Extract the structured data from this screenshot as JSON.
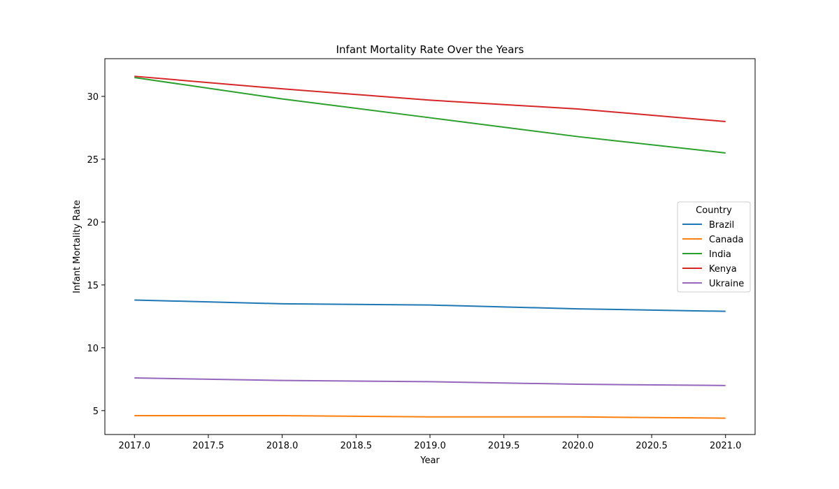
{
  "chart_data": {
    "type": "line",
    "title": "Infant Mortality Rate Over the Years",
    "xlabel": "Year",
    "ylabel": "Infant Mortality Rate",
    "x": [
      2017,
      2018,
      2019,
      2020,
      2021
    ],
    "xlim": [
      2016.8,
      2021.2
    ],
    "ylim": [
      3.1,
      33.0
    ],
    "xticks": [
      2017.0,
      2017.5,
      2018.0,
      2018.5,
      2019.0,
      2019.5,
      2020.0,
      2020.5,
      2021.0
    ],
    "xtick_labels": [
      "2017.0",
      "2017.5",
      "2018.0",
      "2018.5",
      "2019.0",
      "2019.5",
      "2020.0",
      "2020.5",
      "2021.0"
    ],
    "yticks": [
      5,
      10,
      15,
      20,
      25,
      30
    ],
    "ytick_labels": [
      "5",
      "10",
      "15",
      "20",
      "25",
      "30"
    ],
    "grid": false,
    "legend": {
      "title": "Country",
      "placement": "center-right"
    },
    "series": [
      {
        "name": "Brazil",
        "color": "#1f77b4",
        "values": [
          13.8,
          13.5,
          13.4,
          13.1,
          12.9
        ]
      },
      {
        "name": "Canada",
        "color": "#ff7f0e",
        "values": [
          4.6,
          4.6,
          4.5,
          4.5,
          4.4
        ]
      },
      {
        "name": "India",
        "color": "#2ca02c",
        "values": [
          31.5,
          29.8,
          28.3,
          26.8,
          25.5
        ]
      },
      {
        "name": "Kenya",
        "color": "#d62728",
        "values": [
          31.6,
          30.6,
          29.7,
          29.0,
          28.0
        ]
      },
      {
        "name": "Ukraine",
        "color": "#9467bd",
        "values": [
          7.6,
          7.4,
          7.3,
          7.1,
          7.0
        ]
      }
    ]
  }
}
